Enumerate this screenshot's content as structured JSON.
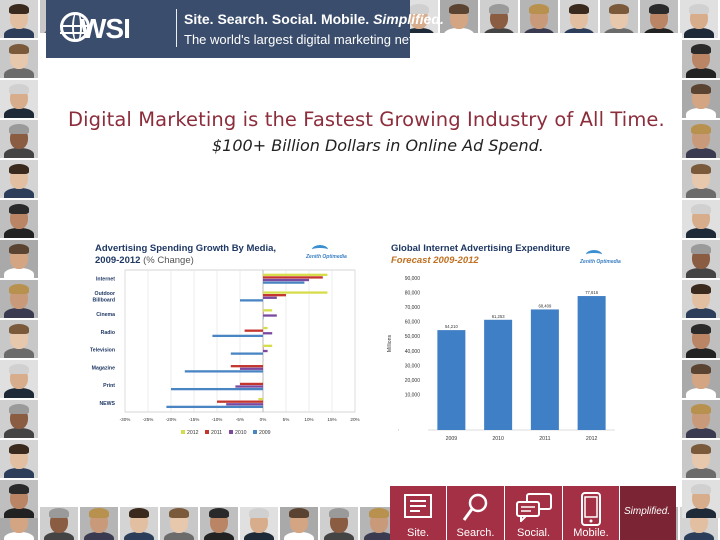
{
  "banner": {
    "logo_text": "WSI",
    "tagline_part1": "Site. Search. Social. Mobile. ",
    "tagline_part1_emph": "Simplified.",
    "tagline_part2": "The world's largest digital marketing network."
  },
  "headline": "Digital Marketing is the Fastest Growing Industry of All Time.",
  "subheadline": "$100+ Billion Dollars in Online Ad Spend.",
  "colors": {
    "banner": "#3a4d6c",
    "headline": "#8c2d3c",
    "nav_tile": "#a33045",
    "nav_tag": "#7a2434",
    "series_2012": "#d7dd4a",
    "series_2011": "#c4352e",
    "series_2010": "#7b4aa0",
    "series_2009": "#4a85c3",
    "forecast_bar": "#3f7fc6"
  },
  "chart_data": [
    {
      "type": "bar",
      "orientation": "horizontal",
      "title": "Advertising Spending Growth By Media,",
      "subtitle_bold": "2009-2012",
      "subtitle_plain": " (% Change)",
      "brand": "Zenith Optimedia",
      "categories": [
        "Internet",
        "Outdoor Billboard",
        "Cinema",
        "Radio",
        "Television",
        "Magazine",
        "Print",
        "NEWS"
      ],
      "category_labels": [
        [
          "Internet"
        ],
        [
          "Outdoor",
          "Billboard"
        ],
        [
          "Cinema"
        ],
        [
          "Radio"
        ],
        [
          "Television"
        ],
        [
          "Magazine"
        ],
        [
          "Print"
        ],
        [
          "NEWS"
        ]
      ],
      "x_ticks": [
        "-30%",
        "-25%",
        "-20%",
        "-15%",
        "-10%",
        "-5%",
        "0%",
        "5%",
        "10%",
        "15%",
        "20%"
      ],
      "xlim": [
        -30,
        20
      ],
      "grid": true,
      "legend_position": "bottom",
      "series": [
        {
          "name": "2012",
          "color": "#d7dd4a",
          "values": [
            14,
            14,
            2,
            1,
            2,
            0,
            0,
            -1
          ]
        },
        {
          "name": "2011",
          "color": "#c4352e",
          "values": [
            13,
            5,
            0,
            -4,
            0,
            -7,
            -5,
            -10
          ]
        },
        {
          "name": "2010",
          "color": "#7b4aa0",
          "values": [
            10,
            3,
            3,
            2,
            1,
            -5,
            -6,
            -8
          ]
        },
        {
          "name": "2009",
          "color": "#4a85c3",
          "values": [
            9,
            -5,
            0,
            -11,
            -7,
            -17,
            -20,
            -21
          ]
        }
      ]
    },
    {
      "type": "bar",
      "title": "Global Internet Advertising Expenditure",
      "subtitle": "Forecast 2009-2012",
      "brand": "Zenith Optimedia",
      "ylabel": "Millions",
      "categories": [
        "2009",
        "2010",
        "2011",
        "2012"
      ],
      "values": [
        54.2,
        61.3,
        68.4,
        77.6
      ],
      "data_labels": [
        "54,210",
        "61,253",
        "68,409",
        "77,616"
      ],
      "y_ticks": [
        "10,000",
        "20,000",
        "30,000",
        "40,000",
        "50,000",
        "60,000",
        "70,000",
        "80,000",
        "90,000"
      ],
      "ylim": [
        0,
        90
      ]
    }
  ],
  "bottom_nav": [
    {
      "label": "Site.",
      "icon": "document-icon"
    },
    {
      "label": "Search.",
      "icon": "magnifier-icon"
    },
    {
      "label": "Social.",
      "icon": "chat-bubbles-icon"
    },
    {
      "label": "Mobile.",
      "icon": "smartphone-icon"
    }
  ],
  "bottom_tag": "Simplified."
}
